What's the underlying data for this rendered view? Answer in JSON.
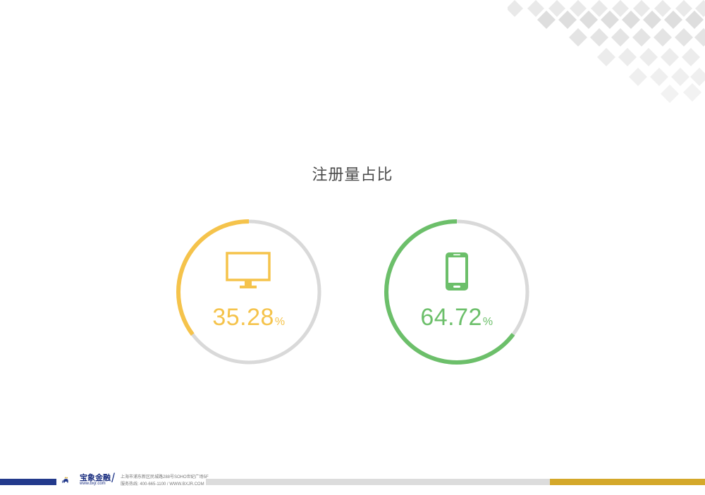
{
  "title": "注册量占比",
  "chart_data": [
    {
      "type": "pie",
      "categories": [
        "PC"
      ],
      "values": [
        35.28
      ],
      "value_label": "35.28",
      "unit": "%",
      "icon": "monitor-icon",
      "color": "#f5c34b",
      "track_color": "#d9d9d9"
    },
    {
      "type": "pie",
      "categories": [
        "Mobile"
      ],
      "values": [
        64.72
      ],
      "value_label": "64.72",
      "unit": "%",
      "icon": "smartphone-icon",
      "color": "#6cbf6a",
      "track_color": "#d9d9d9"
    }
  ],
  "footer": {
    "brand": "宝象金融",
    "site": "www.bxjr.com",
    "address": "上海市浦东新区民城路288号SOHO世纪广场5F",
    "hotline": "服务热线: 400-665-1100 / WWW.BXJR.COM",
    "colors": {
      "blue": "#233a8c",
      "gray": "#dcdcdc",
      "gold": "#d4a82a"
    }
  }
}
